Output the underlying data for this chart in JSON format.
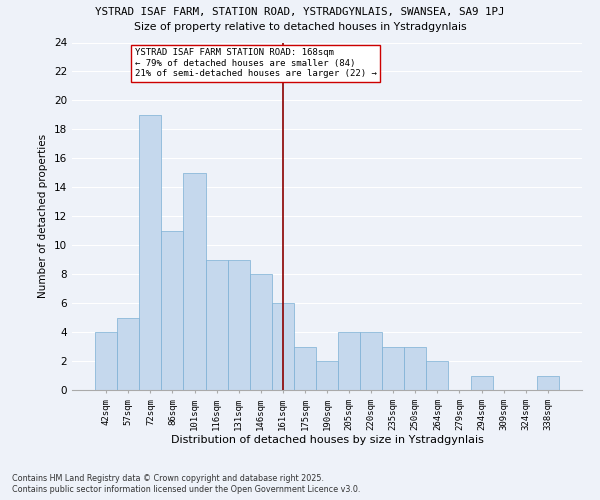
{
  "title1": "YSTRAD ISAF FARM, STATION ROAD, YSTRADGYNLAIS, SWANSEA, SA9 1PJ",
  "title2": "Size of property relative to detached houses in Ystradgynlais",
  "xlabel": "Distribution of detached houses by size in Ystradgynlais",
  "ylabel": "Number of detached properties",
  "categories": [
    "42sqm",
    "57sqm",
    "72sqm",
    "86sqm",
    "101sqm",
    "116sqm",
    "131sqm",
    "146sqm",
    "161sqm",
    "175sqm",
    "190sqm",
    "205sqm",
    "220sqm",
    "235sqm",
    "250sqm",
    "264sqm",
    "279sqm",
    "294sqm",
    "309sqm",
    "324sqm",
    "338sqm"
  ],
  "values": [
    4,
    5,
    19,
    11,
    15,
    9,
    9,
    8,
    6,
    3,
    2,
    4,
    4,
    3,
    3,
    2,
    0,
    1,
    0,
    0,
    1
  ],
  "bar_color": "#c5d8ed",
  "bar_edge_color": "#7bafd4",
  "vline_index": 8,
  "vline_color": "#8b0000",
  "annotation_text": "YSTRAD ISAF FARM STATION ROAD: 168sqm\n← 79% of detached houses are smaller (84)\n21% of semi-detached houses are larger (22) →",
  "annotation_box_color": "#ffffff",
  "annotation_box_edge": "#cc0000",
  "ylim": [
    0,
    24
  ],
  "yticks": [
    0,
    2,
    4,
    6,
    8,
    10,
    12,
    14,
    16,
    18,
    20,
    22,
    24
  ],
  "background_color": "#eef2f9",
  "grid_color": "#ffffff",
  "footnote": "Contains HM Land Registry data © Crown copyright and database right 2025.\nContains public sector information licensed under the Open Government Licence v3.0."
}
